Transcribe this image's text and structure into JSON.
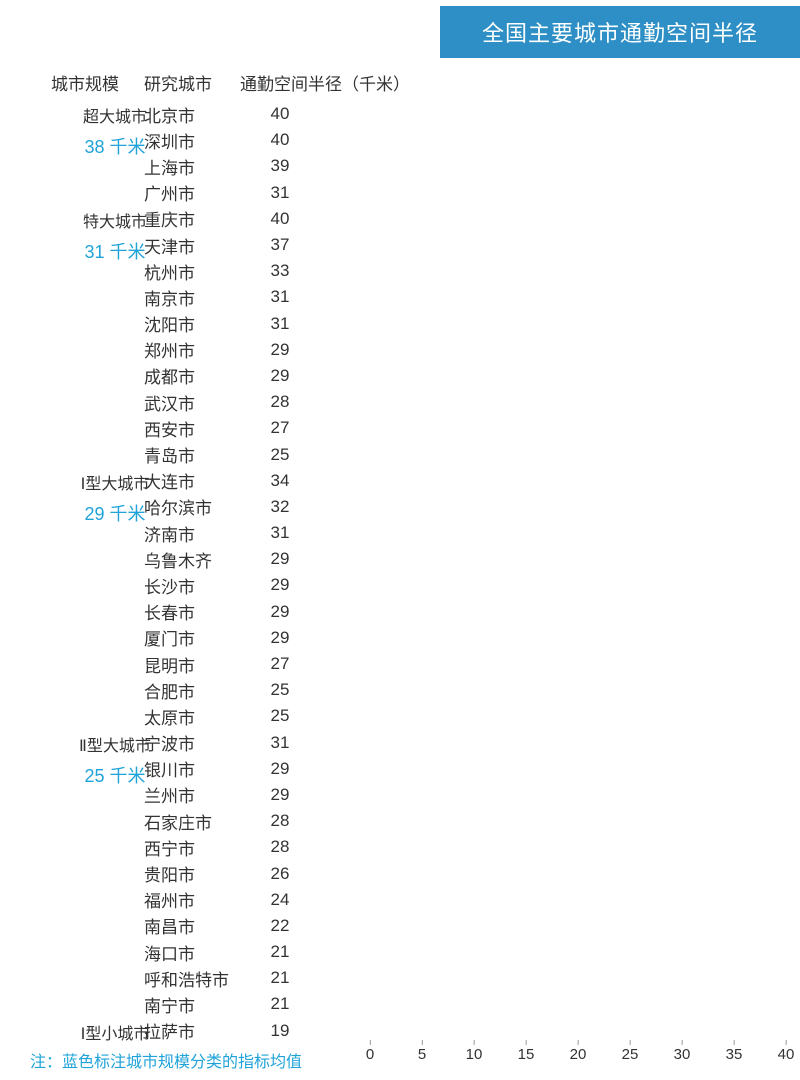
{
  "title": "全国主要城市通勤空间半径",
  "headers": {
    "scale": "城市规模",
    "city": "研究城市",
    "value_label": "通勤空间半径（千米）"
  },
  "axis": {
    "min": 0,
    "max": 40,
    "step": 5,
    "ticks": [
      0,
      5,
      10,
      15,
      20,
      25,
      30,
      35,
      40
    ]
  },
  "footnote": "注：蓝色标注城市规模分类的指标均值",
  "groups": [
    {
      "scale_label": "超大城市",
      "avg_label": "38 千米",
      "bar_color": "#2b6a9e",
      "cities": [
        {
          "name": "北京市",
          "value": 40
        },
        {
          "name": "深圳市",
          "value": 40
        },
        {
          "name": "上海市",
          "value": 39
        },
        {
          "name": "广州市",
          "value": 31
        }
      ]
    },
    {
      "scale_label": "特大城市",
      "avg_label": "31 千米",
      "bar_color": "#3c87b6",
      "cities": [
        {
          "name": "重庆市",
          "value": 40
        },
        {
          "name": "天津市",
          "value": 37
        },
        {
          "name": "杭州市",
          "value": 33
        },
        {
          "name": "南京市",
          "value": 31
        },
        {
          "name": "沈阳市",
          "value": 31
        },
        {
          "name": "郑州市",
          "value": 29
        },
        {
          "name": "成都市",
          "value": 29
        },
        {
          "name": "武汉市",
          "value": 28
        },
        {
          "name": "西安市",
          "value": 27
        },
        {
          "name": "青岛市",
          "value": 25
        }
      ]
    },
    {
      "scale_label": "Ⅰ型大城市",
      "avg_label": "29 千米",
      "bar_color": "#4da6c9",
      "cities": [
        {
          "name": "大连市",
          "value": 34
        },
        {
          "name": "哈尔滨市",
          "value": 32
        },
        {
          "name": "济南市",
          "value": 31
        },
        {
          "name": "乌鲁木齐",
          "value": 29
        },
        {
          "name": "长沙市",
          "value": 29
        },
        {
          "name": "长春市",
          "value": 29
        },
        {
          "name": "厦门市",
          "value": 29
        },
        {
          "name": "昆明市",
          "value": 27
        },
        {
          "name": "合肥市",
          "value": 25
        },
        {
          "name": "太原市",
          "value": 25
        }
      ]
    },
    {
      "scale_label": "Ⅱ型大城市",
      "avg_label": "25 千米",
      "bar_color": "#6abfd4",
      "cities": [
        {
          "name": "宁波市",
          "value": 31
        },
        {
          "name": "银川市",
          "value": 29
        },
        {
          "name": "兰州市",
          "value": 29
        },
        {
          "name": "石家庄市",
          "value": 28
        },
        {
          "name": "西宁市",
          "value": 28
        },
        {
          "name": "贵阳市",
          "value": 26
        },
        {
          "name": "福州市",
          "value": 24
        },
        {
          "name": "南昌市",
          "value": 22
        },
        {
          "name": "海口市",
          "value": 21
        },
        {
          "name": "呼和浩特市",
          "value": 21
        },
        {
          "name": "南宁市",
          "value": 21
        }
      ]
    },
    {
      "scale_label": "Ⅰ型小城市",
      "avg_label": "",
      "bar_color": "#7fccdb",
      "cities": [
        {
          "name": "拉萨市",
          "value": 19
        }
      ]
    }
  ]
}
